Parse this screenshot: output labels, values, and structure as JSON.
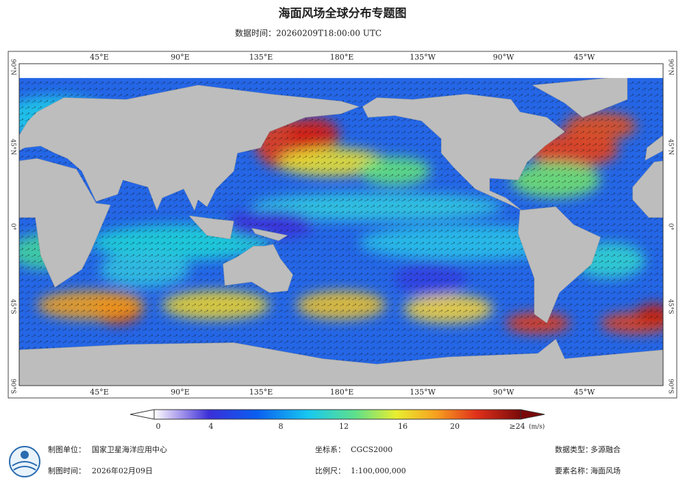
{
  "header": {
    "title": "海面风场全球分布专题图",
    "subtitle": "数据时间：20260209T18:00:00 UTC"
  },
  "map": {
    "lon_labels": [
      "45°E",
      "90°E",
      "135°E",
      "180°E",
      "135°W",
      "90°W",
      "45°W"
    ],
    "lat_labels": [
      "90°N",
      "45°N",
      "0°",
      "45°S",
      "90°S"
    ]
  },
  "legend": {
    "ticks": [
      "0",
      "4",
      "8",
      "12",
      "16",
      "20",
      "≥24"
    ],
    "unit": "(m/s)"
  },
  "footer": {
    "items": [
      {
        "label": "制图单位：",
        "value": "国家卫星海洋应用中心"
      },
      {
        "label": "坐标系：",
        "value": "CGCS2000"
      },
      {
        "label": "数据类型：",
        "value": "多源融合"
      },
      {
        "label": "制图时间：",
        "value": "2026年02月09日"
      },
      {
        "label": "比例尺：",
        "value": "1:100,000,000"
      },
      {
        "label": "要素名称：",
        "value": "海面风场"
      }
    ]
  }
}
